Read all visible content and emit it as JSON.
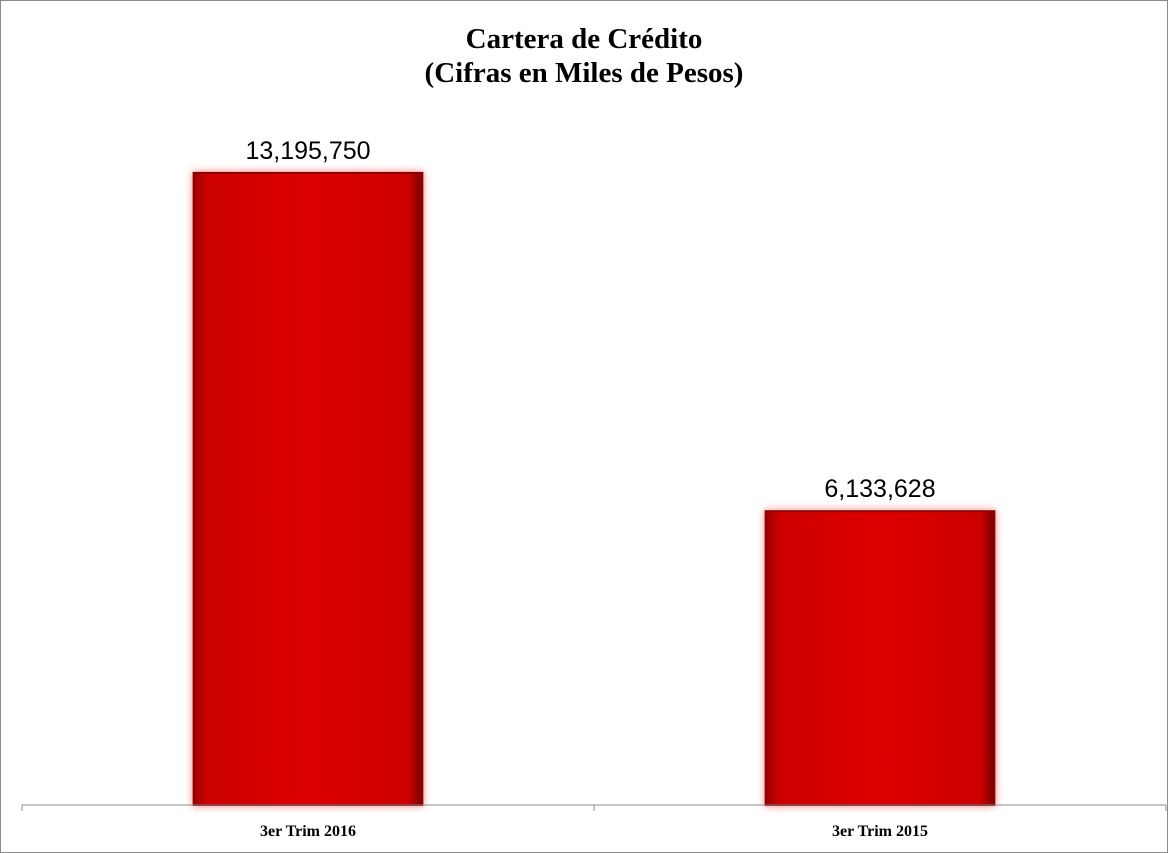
{
  "chart_data": {
    "type": "bar",
    "title": "Cartera de Crédito",
    "subtitle": "(Cifras en Miles de Pesos)",
    "categories": [
      "3er Trim 2016",
      "3er Trim 2015"
    ],
    "values": [
      13195750,
      6133628
    ],
    "value_labels": [
      "13,195,750",
      "6,133,628"
    ],
    "xlabel": "",
    "ylabel": "",
    "ylim": [
      0,
      14300000
    ],
    "grid": false,
    "legend": "none",
    "colors": {
      "bar": "#d90000",
      "bar_edge": "#8a0000",
      "glow": "#ff8a8a",
      "axis": "#8c8c8c"
    }
  }
}
